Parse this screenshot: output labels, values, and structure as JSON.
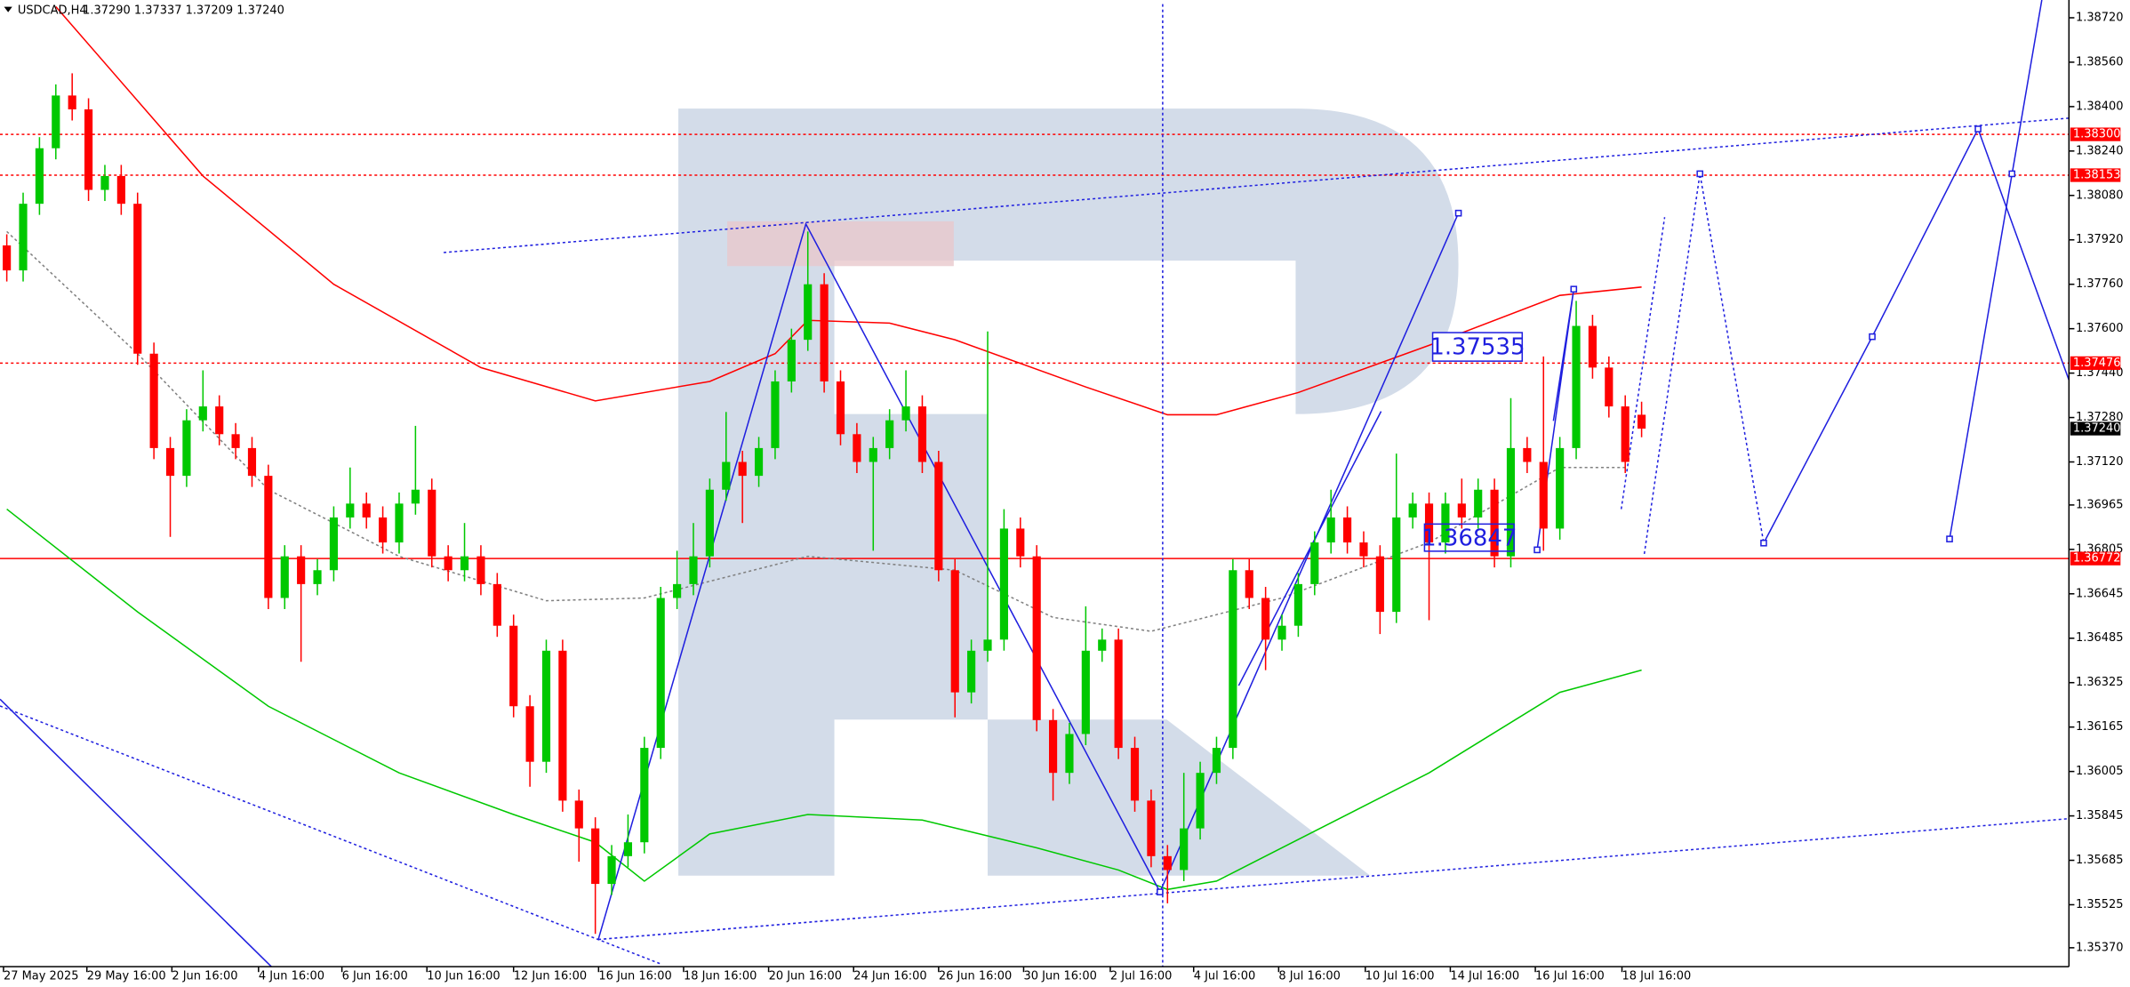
{
  "chart_data": {
    "type": "candlestick",
    "header": {
      "symbol": "USDCAD,H4",
      "quote": "1.37290 1.37337 1.37209 1.37240"
    },
    "ylim": [
      1.35302,
      1.38784
    ],
    "yticks": [
      {
        "value": 1.3872,
        "label": "1.38720"
      },
      {
        "value": 1.3856,
        "label": "1.38560"
      },
      {
        "value": 1.384,
        "label": "1.38400"
      },
      {
        "value": 1.3824,
        "label": "1.38240"
      },
      {
        "value": 1.3808,
        "label": "1.38080"
      },
      {
        "value": 1.3792,
        "label": "1.37920"
      },
      {
        "value": 1.3776,
        "label": "1.37760"
      },
      {
        "value": 1.376,
        "label": "1.37600"
      },
      {
        "value": 1.3744,
        "label": "1.37440"
      },
      {
        "value": 1.3728,
        "label": "1.37280"
      },
      {
        "value": 1.3712,
        "label": "1.37120"
      },
      {
        "value": 1.36965,
        "label": "1.36965"
      },
      {
        "value": 1.36805,
        "label": "1.36805"
      },
      {
        "value": 1.36645,
        "label": "1.36645"
      },
      {
        "value": 1.36485,
        "label": "1.36485"
      },
      {
        "value": 1.36325,
        "label": "1.36325"
      },
      {
        "value": 1.36165,
        "label": "1.36165"
      },
      {
        "value": 1.36005,
        "label": "1.36005"
      },
      {
        "value": 1.35845,
        "label": "1.35845"
      },
      {
        "value": 1.35685,
        "label": "1.35685"
      },
      {
        "value": 1.35525,
        "label": "1.35525"
      },
      {
        "value": 1.3537,
        "label": "1.35370"
      }
    ],
    "xlim": [
      -0.4,
      126.2
    ],
    "xticks": [
      {
        "value": -0.2,
        "label": "27 May 2025"
      },
      {
        "value": 4.9,
        "label": "29 May 16:00"
      },
      {
        "value": 10.1,
        "label": "2 Jun 16:00"
      },
      {
        "value": 15.4,
        "label": "4 Jun 16:00"
      },
      {
        "value": 20.5,
        "label": "6 Jun 16:00"
      },
      {
        "value": 25.7,
        "label": "10 Jun 16:00"
      },
      {
        "value": 31.0,
        "label": "12 Jun 16:00"
      },
      {
        "value": 36.2,
        "label": "16 Jun 16:00"
      },
      {
        "value": 41.4,
        "label": "18 Jun 16:00"
      },
      {
        "value": 46.6,
        "label": "20 Jun 16:00"
      },
      {
        "value": 51.8,
        "label": "24 Jun 16:00"
      },
      {
        "value": 57.0,
        "label": "26 Jun 16:00"
      },
      {
        "value": 62.2,
        "label": "30 Jun 16:00"
      },
      {
        "value": 67.5,
        "label": "2 Jul 16:00"
      },
      {
        "value": 72.6,
        "label": "4 Jul 16:00"
      },
      {
        "value": 77.8,
        "label": "8 Jul 16:00"
      },
      {
        "value": 83.1,
        "label": "10 Jul 16:00"
      },
      {
        "value": 88.3,
        "label": "14 Jul 16:00"
      },
      {
        "value": 93.5,
        "label": "16 Jul 16:00"
      },
      {
        "value": 98.8,
        "label": "18 Jul 16:00"
      }
    ],
    "up_color": "#00c800",
    "down_color": "#ff0000",
    "candles": [
      [
        1.379,
        1.3794,
        1.3777,
        1.3781
      ],
      [
        1.3781,
        1.3809,
        1.3777,
        1.3805
      ],
      [
        1.3805,
        1.3829,
        1.3801,
        1.3825
      ],
      [
        1.3825,
        1.3848,
        1.3821,
        1.3844
      ],
      [
        1.3844,
        1.3852,
        1.3835,
        1.3839
      ],
      [
        1.3839,
        1.3843,
        1.3806,
        1.381
      ],
      [
        1.381,
        1.3819,
        1.3806,
        1.3815
      ],
      [
        1.3815,
        1.3819,
        1.3801,
        1.3805
      ],
      [
        1.3805,
        1.3809,
        1.3747,
        1.3751
      ],
      [
        1.3751,
        1.3755,
        1.3713,
        1.3717
      ],
      [
        1.3717,
        1.3721,
        1.3685,
        1.3707
      ],
      [
        1.3707,
        1.3731,
        1.3703,
        1.3727
      ],
      [
        1.3727,
        1.3745,
        1.3723,
        1.3732
      ],
      [
        1.3732,
        1.3736,
        1.3718,
        1.3722
      ],
      [
        1.3722,
        1.3726,
        1.3713,
        1.3717
      ],
      [
        1.3717,
        1.3721,
        1.3703,
        1.3707
      ],
      [
        1.3707,
        1.3711,
        1.3659,
        1.3663
      ],
      [
        1.3663,
        1.3682,
        1.3659,
        1.3678
      ],
      [
        1.3678,
        1.3682,
        1.364,
        1.3668
      ],
      [
        1.3668,
        1.3677,
        1.3664,
        1.3673
      ],
      [
        1.3673,
        1.3696,
        1.3669,
        1.3692
      ],
      [
        1.3692,
        1.371,
        1.3688,
        1.3697
      ],
      [
        1.3697,
        1.3701,
        1.3688,
        1.3692
      ],
      [
        1.3692,
        1.3696,
        1.3679,
        1.3683
      ],
      [
        1.3683,
        1.3701,
        1.3679,
        1.3697
      ],
      [
        1.3697,
        1.3725,
        1.3693,
        1.3702
      ],
      [
        1.3702,
        1.3706,
        1.3674,
        1.3678
      ],
      [
        1.3678,
        1.3682,
        1.3669,
        1.3673
      ],
      [
        1.3673,
        1.369,
        1.3669,
        1.3678
      ],
      [
        1.3678,
        1.3682,
        1.3664,
        1.3668
      ],
      [
        1.3668,
        1.3672,
        1.3649,
        1.3653
      ],
      [
        1.3653,
        1.3657,
        1.362,
        1.3624
      ],
      [
        1.3624,
        1.3628,
        1.3595,
        1.3604
      ],
      [
        1.3604,
        1.3648,
        1.36,
        1.3644
      ],
      [
        1.3644,
        1.3648,
        1.3586,
        1.359
      ],
      [
        1.359,
        1.3594,
        1.3568,
        1.358
      ],
      [
        1.358,
        1.3584,
        1.3542,
        1.356
      ],
      [
        1.356,
        1.3574,
        1.3556,
        1.357
      ],
      [
        1.357,
        1.3585,
        1.3566,
        1.3575
      ],
      [
        1.3575,
        1.3613,
        1.3571,
        1.3609
      ],
      [
        1.3609,
        1.3667,
        1.3605,
        1.3663
      ],
      [
        1.3663,
        1.368,
        1.3659,
        1.3668
      ],
      [
        1.3668,
        1.369,
        1.3664,
        1.3678
      ],
      [
        1.3678,
        1.3706,
        1.3674,
        1.3702
      ],
      [
        1.3702,
        1.373,
        1.3698,
        1.3712
      ],
      [
        1.3712,
        1.3716,
        1.369,
        1.3707
      ],
      [
        1.3707,
        1.3721,
        1.3703,
        1.3717
      ],
      [
        1.3717,
        1.3745,
        1.3713,
        1.3741
      ],
      [
        1.3741,
        1.376,
        1.3737,
        1.3756
      ],
      [
        1.3756,
        1.3795,
        1.3752,
        1.3776
      ],
      [
        1.3776,
        1.378,
        1.3737,
        1.3741
      ],
      [
        1.3741,
        1.3745,
        1.3718,
        1.3722
      ],
      [
        1.3722,
        1.3726,
        1.3708,
        1.3712
      ],
      [
        1.3712,
        1.3721,
        1.368,
        1.3717
      ],
      [
        1.3717,
        1.3731,
        1.3713,
        1.3727
      ],
      [
        1.3727,
        1.3745,
        1.3723,
        1.3732
      ],
      [
        1.3732,
        1.3736,
        1.3708,
        1.3712
      ],
      [
        1.3712,
        1.3716,
        1.3669,
        1.3673
      ],
      [
        1.3673,
        1.3677,
        1.362,
        1.3629
      ],
      [
        1.3629,
        1.3648,
        1.3625,
        1.3644
      ],
      [
        1.3644,
        1.3759,
        1.364,
        1.3648
      ],
      [
        1.3648,
        1.3695,
        1.3644,
        1.3688
      ],
      [
        1.3688,
        1.3692,
        1.3674,
        1.3678
      ],
      [
        1.3678,
        1.3682,
        1.3615,
        1.3619
      ],
      [
        1.3619,
        1.3623,
        1.359,
        1.36
      ],
      [
        1.36,
        1.3618,
        1.3596,
        1.3614
      ],
      [
        1.3614,
        1.366,
        1.361,
        1.3644
      ],
      [
        1.3644,
        1.3652,
        1.364,
        1.3648
      ],
      [
        1.3648,
        1.3652,
        1.3605,
        1.3609
      ],
      [
        1.3609,
        1.3613,
        1.3586,
        1.359
      ],
      [
        1.359,
        1.3594,
        1.3566,
        1.357
      ],
      [
        1.357,
        1.3574,
        1.3553,
        1.3565
      ],
      [
        1.3565,
        1.36,
        1.3561,
        1.358
      ],
      [
        1.358,
        1.3604,
        1.3576,
        1.36
      ],
      [
        1.36,
        1.3613,
        1.3596,
        1.3609
      ],
      [
        1.3609,
        1.3677,
        1.3605,
        1.3673
      ],
      [
        1.3673,
        1.3677,
        1.3659,
        1.3663
      ],
      [
        1.3663,
        1.3667,
        1.3637,
        1.3648
      ],
      [
        1.3648,
        1.3657,
        1.3644,
        1.3653
      ],
      [
        1.3653,
        1.3672,
        1.3649,
        1.3668
      ],
      [
        1.3668,
        1.3687,
        1.3664,
        1.3683
      ],
      [
        1.3683,
        1.3702,
        1.3679,
        1.3692
      ],
      [
        1.3692,
        1.3696,
        1.3679,
        1.3683
      ],
      [
        1.3683,
        1.3687,
        1.3674,
        1.3678
      ],
      [
        1.3678,
        1.3682,
        1.365,
        1.3658
      ],
      [
        1.3658,
        1.3715,
        1.3654,
        1.3692
      ],
      [
        1.3692,
        1.3701,
        1.3688,
        1.3697
      ],
      [
        1.3697,
        1.3701,
        1.3655,
        1.3683
      ],
      [
        1.3683,
        1.3701,
        1.3679,
        1.3697
      ],
      [
        1.3697,
        1.3706,
        1.3688,
        1.3692
      ],
      [
        1.3692,
        1.3706,
        1.3688,
        1.3702
      ],
      [
        1.3702,
        1.3706,
        1.3674,
        1.3678
      ],
      [
        1.3678,
        1.3735,
        1.3674,
        1.3717
      ],
      [
        1.3717,
        1.3721,
        1.3708,
        1.3712
      ],
      [
        1.3712,
        1.375,
        1.368,
        1.3688
      ],
      [
        1.3688,
        1.3721,
        1.3684,
        1.3717
      ],
      [
        1.3717,
        1.377,
        1.3713,
        1.3761
      ],
      [
        1.3761,
        1.3765,
        1.3742,
        1.3746
      ],
      [
        1.3746,
        1.375,
        1.3728,
        1.3732
      ],
      [
        1.3732,
        1.3736,
        1.3708,
        1.3712
      ],
      [
        1.3729,
        1.37337,
        1.37209,
        1.3724
      ]
    ],
    "overlays": [
      {
        "color": "#ff0000",
        "style": "solid",
        "x": [
          3,
          12,
          20,
          29,
          36,
          43,
          47,
          49,
          54,
          58,
          66,
          71,
          74,
          79,
          87,
          95,
          100
        ],
        "values": [
          1.3876,
          1.3815,
          1.3776,
          1.3746,
          1.3734,
          1.3741,
          1.3751,
          1.3763,
          1.3762,
          1.3756,
          1.3739,
          1.3729,
          1.3729,
          1.3737,
          1.3754,
          1.3772,
          1.3775
        ]
      },
      {
        "color": "#00c800",
        "style": "solid",
        "x": [
          0,
          8,
          16,
          24,
          31,
          36,
          39,
          43,
          49,
          56,
          63,
          68,
          71,
          74,
          78,
          87,
          95,
          100
        ],
        "values": [
          1.3695,
          1.3658,
          1.3624,
          1.36,
          1.3585,
          1.3575,
          1.3561,
          1.3578,
          1.3585,
          1.3583,
          1.3573,
          1.3565,
          1.3558,
          1.3561,
          1.3573,
          1.36,
          1.3629,
          1.3637
        ]
      },
      {
        "color": "#808080",
        "style": "dotted",
        "x": [
          0,
          8,
          16,
          24,
          33,
          39,
          49,
          58,
          64,
          70,
          78,
          87,
          95,
          99
        ],
        "values": [
          1.3795,
          1.3751,
          1.3702,
          1.3678,
          1.3662,
          1.3663,
          1.3678,
          1.3673,
          1.3656,
          1.3651,
          1.3663,
          1.3683,
          1.371,
          1.371
        ]
      }
    ],
    "levels": [
      {
        "value": 1.383,
        "label": "1.38300",
        "color": "#ff0000",
        "style": "dotted"
      },
      {
        "value": 1.38153,
        "label": "1.38153",
        "color": "#ff0000",
        "style": "dotted"
      },
      {
        "value": 1.37476,
        "label": "1.37476",
        "color": "#ff0000",
        "style": "dotted"
      },
      {
        "value": 1.3724,
        "label": "1.37240",
        "color": "#000000",
        "style": "none"
      },
      {
        "value": 1.36772,
        "label": "1.36772",
        "color": "#ff0000",
        "style": "solid"
      }
    ],
    "annotations": [
      "1.37535",
      "1.36847"
    ]
  }
}
